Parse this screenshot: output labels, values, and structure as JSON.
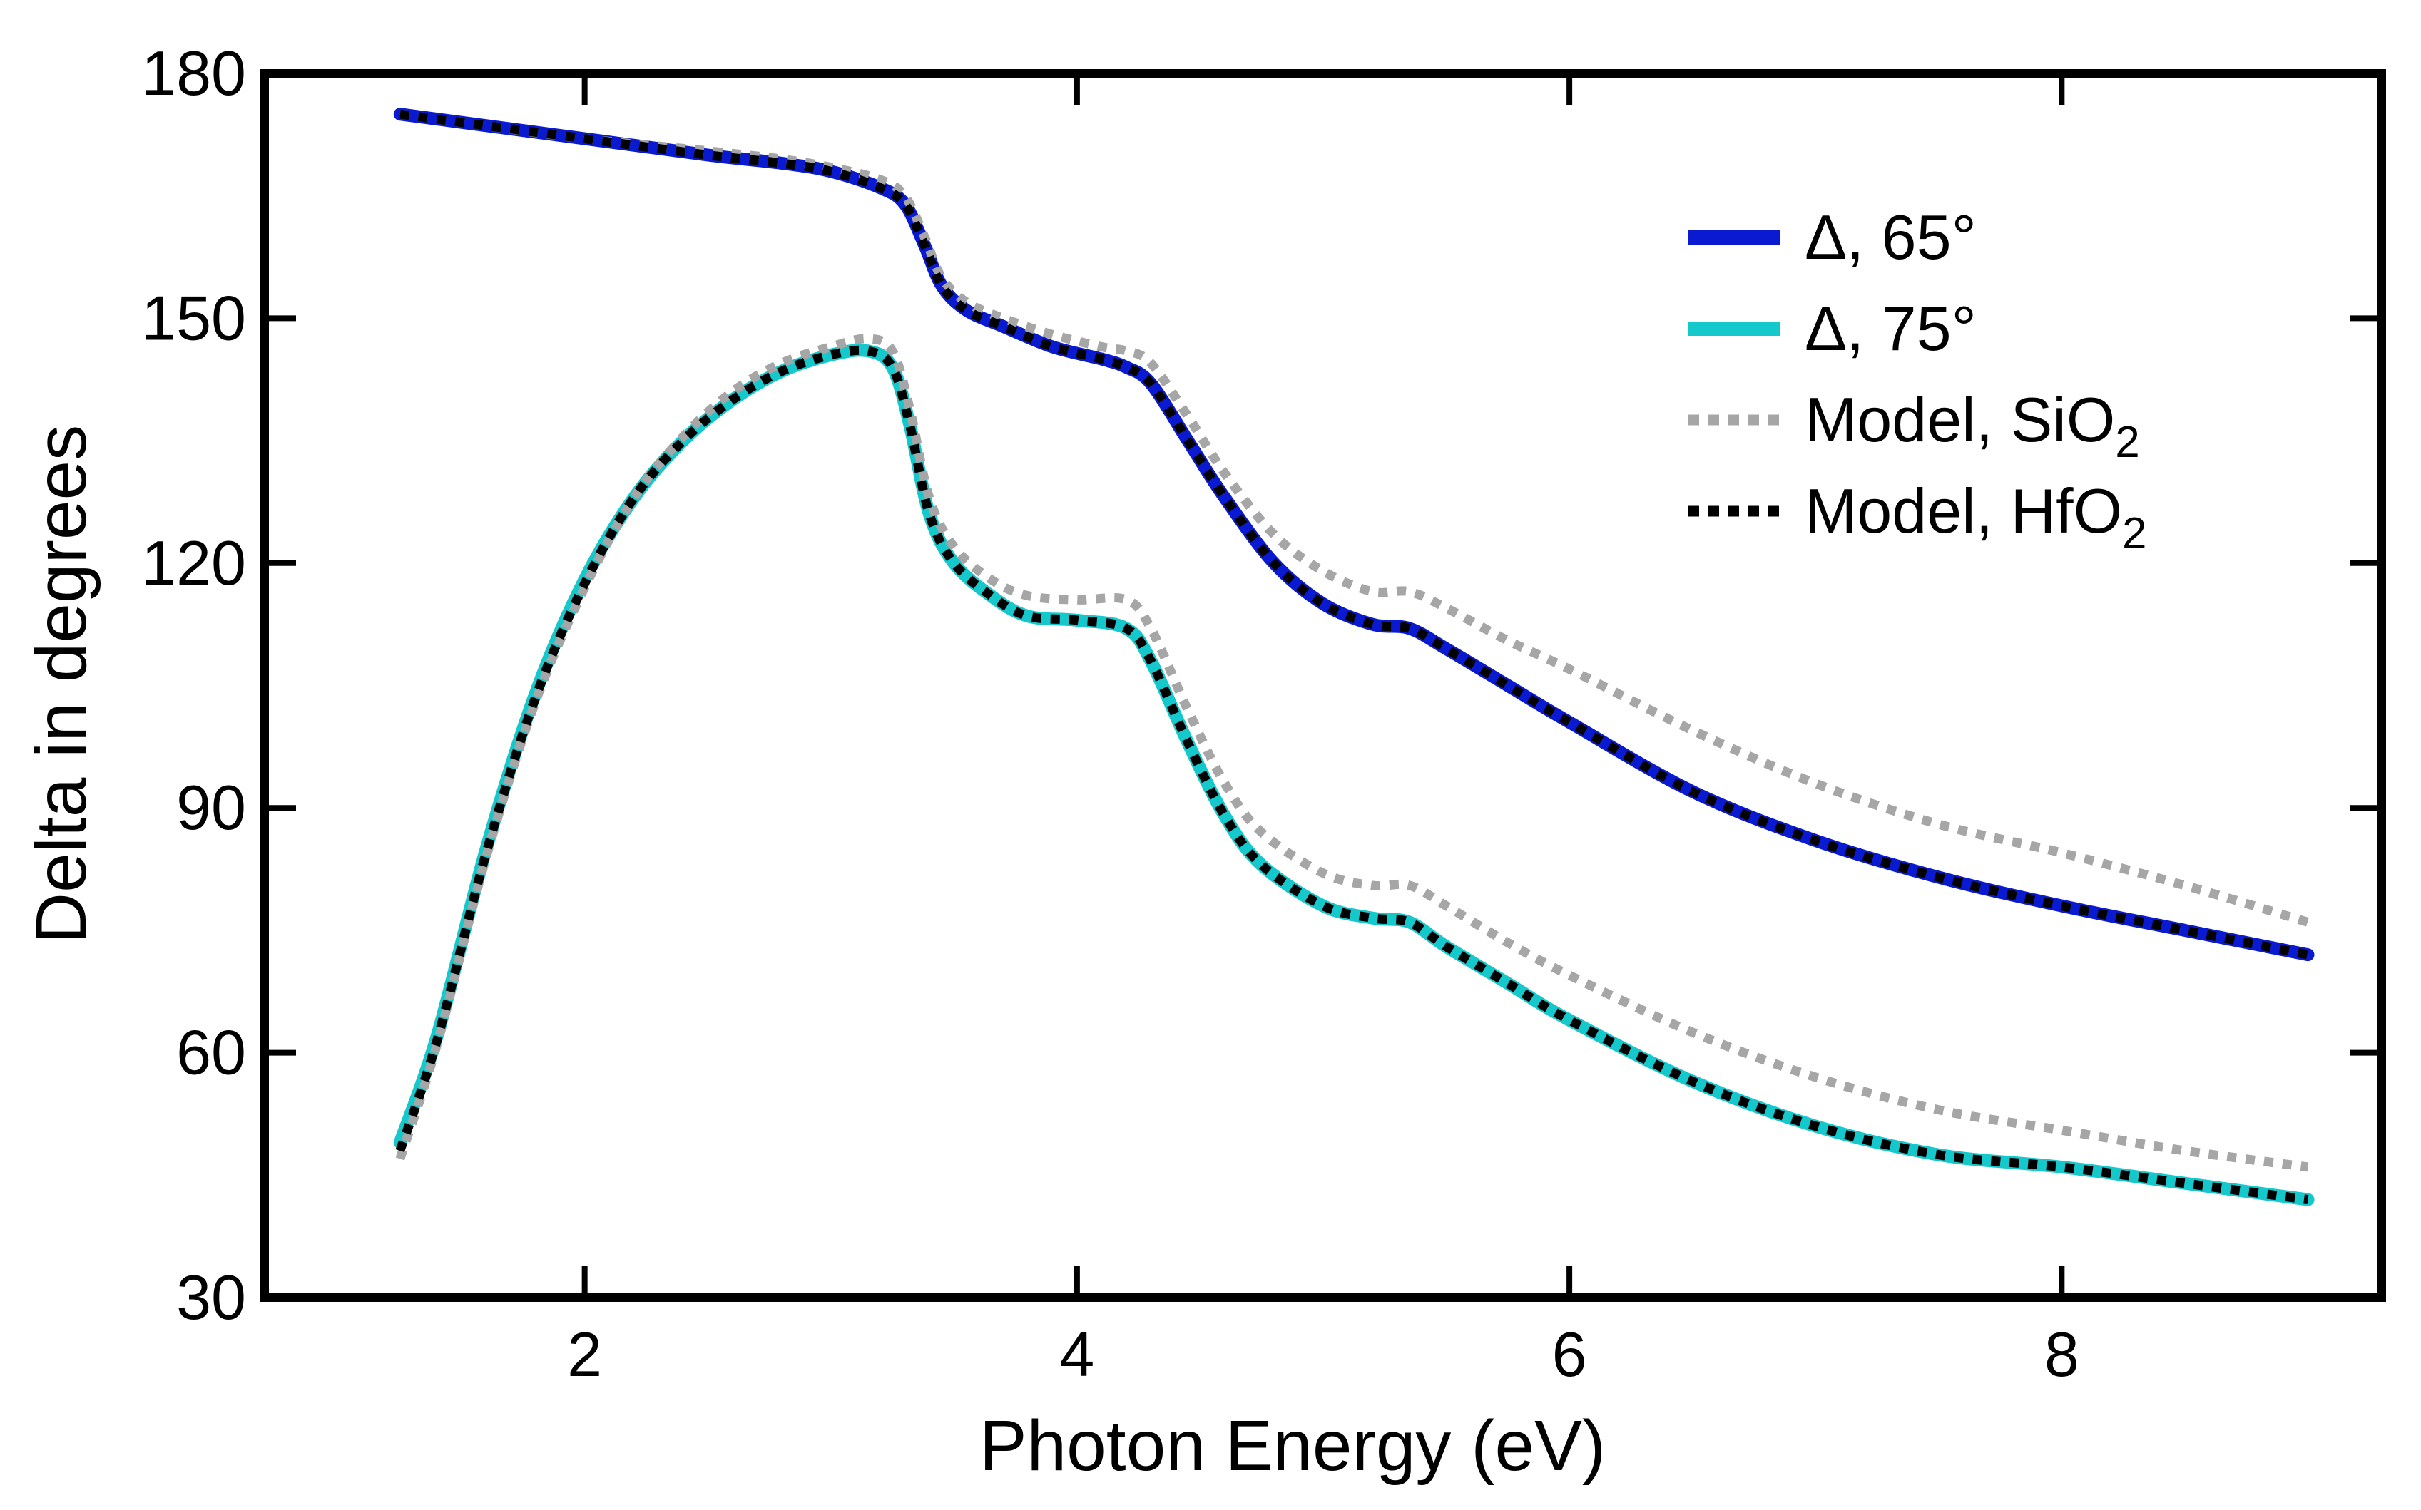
{
  "chart_data": {
    "type": "line",
    "xlabel": "Photon Energy (eV)",
    "ylabel": "Delta in degrees",
    "xlim": [
      0.7,
      9.3
    ],
    "ylim": [
      30,
      180
    ],
    "xticks": [
      2,
      4,
      6,
      8
    ],
    "yticks": [
      30,
      60,
      90,
      120,
      150,
      180
    ],
    "grid": false,
    "legend_position": "top-right",
    "legend": [
      {
        "text": "Δ, 65°",
        "sub": "",
        "color": "#0a1ad0",
        "style": "solid"
      },
      {
        "text": "Δ, 75°",
        "sub": "",
        "color": "#14c8cc",
        "style": "solid"
      },
      {
        "text": "Model, SiO",
        "sub": "2",
        "color": "#a6a6a6",
        "style": "dotted"
      },
      {
        "text": "Model, HfO",
        "sub": "2",
        "color": "#000000",
        "style": "dotted"
      }
    ],
    "series": [
      {
        "name": "Δ, 65°",
        "color": "#0a1ad0",
        "style": "solid",
        "x": [
          1.25,
          1.5,
          2.0,
          2.5,
          2.8,
          3.0,
          3.2,
          3.3,
          3.38,
          3.45,
          3.55,
          3.7,
          3.9,
          4.1,
          4.2,
          4.3,
          4.45,
          4.6,
          4.8,
          5.0,
          5.2,
          5.35,
          5.5,
          5.75,
          6.0,
          6.5,
          7.0,
          7.5,
          8.0,
          8.5,
          9.0
        ],
        "y": [
          175,
          174,
          172,
          170,
          169,
          168,
          166,
          164,
          159,
          154,
          151,
          149,
          146.5,
          145,
          144,
          142,
          135,
          128,
          120,
          115,
          112.5,
          112,
          109.5,
          105,
          100.5,
          92,
          86,
          81.5,
          78,
          75,
          72
        ]
      },
      {
        "name": "Δ, 75°",
        "color": "#14c8cc",
        "style": "solid",
        "x": [
          1.25,
          1.4,
          1.6,
          1.8,
          2.0,
          2.2,
          2.4,
          2.6,
          2.8,
          3.0,
          3.15,
          3.25,
          3.32,
          3.4,
          3.5,
          3.65,
          3.8,
          4.0,
          4.2,
          4.3,
          4.45,
          4.6,
          4.75,
          5.0,
          5.2,
          5.35,
          5.5,
          5.75,
          6.0,
          6.5,
          7.0,
          7.5,
          8.0,
          8.5,
          9.0
        ],
        "y": [
          49,
          62,
          85,
          104,
          118,
          128,
          135,
          140,
          143.5,
          145.5,
          146,
          144,
          137,
          126,
          120,
          116,
          113.5,
          113,
          112,
          108,
          98,
          89,
          83,
          78,
          76.5,
          76,
          73,
          68.5,
          64,
          56.5,
          51,
          47.5,
          46,
          44,
          42
        ]
      },
      {
        "name": "Model, SiO2",
        "color": "#a6a6a6",
        "style": "dotted",
        "curves": [
          {
            "x": [
              1.25,
              1.5,
              2.0,
              2.5,
              2.8,
              3.0,
              3.2,
              3.3,
              3.38,
              3.45,
              3.55,
              3.7,
              3.9,
              4.1,
              4.2,
              4.3,
              4.45,
              4.6,
              4.8,
              5.0,
              5.2,
              5.35,
              5.5,
              5.75,
              6.0,
              6.5,
              7.0,
              7.5,
              8.0,
              8.5,
              9.0
            ],
            "y": [
              175,
              174,
              172,
              170.5,
              169.5,
              168.5,
              167,
              165,
              160,
              155,
              152,
              150,
              148,
              146.5,
              146,
              144.5,
              138,
              131,
              123.5,
              119,
              116.5,
              116.5,
              114.5,
              110.5,
              107,
              99.5,
              93,
              88,
              84.5,
              80.5,
              76
            ]
          },
          {
            "x": [
              1.25,
              1.4,
              1.6,
              1.8,
              2.0,
              2.2,
              2.4,
              2.6,
              2.8,
              3.0,
              3.15,
              3.25,
              3.32,
              3.4,
              3.5,
              3.65,
              3.8,
              4.0,
              4.2,
              4.3,
              4.45,
              4.6,
              4.75,
              5.0,
              5.2,
              5.35,
              5.5,
              5.75,
              6.0,
              6.5,
              7.0,
              7.5,
              8.0,
              8.5,
              9.0
            ],
            "y": [
              47,
              61,
              84,
              103,
              117,
              128,
              135.5,
              141,
              144.5,
              146.5,
              147.5,
              146,
              139,
              128,
              122,
              118,
              116,
              115.5,
              115.5,
              112,
              102,
              93,
              87,
              82,
              80.5,
              80.5,
              78,
              73.5,
              69.5,
              62.5,
              57,
              53,
              50.5,
              48,
              46
            ]
          }
        ]
      },
      {
        "name": "Model, HfO2",
        "color": "#000000",
        "style": "dotted",
        "curves": [
          {
            "x": [
              1.25,
              1.5,
              2.0,
              2.5,
              2.8,
              3.0,
              3.2,
              3.3,
              3.38,
              3.45,
              3.55,
              3.7,
              3.9,
              4.1,
              4.2,
              4.3,
              4.45,
              4.6,
              4.8,
              5.0,
              5.2,
              5.35,
              5.5,
              5.75,
              6.0,
              6.5,
              7.0,
              7.5,
              8.0,
              8.5,
              9.0
            ],
            "y": [
              175,
              174,
              172,
              170,
              169,
              168,
              166,
              164,
              159,
              154,
              151,
              149,
              146.5,
              145,
              144,
              142,
              135,
              128,
              120,
              115,
              112.5,
              112,
              109.5,
              105,
              100.5,
              92,
              86,
              81.5,
              78,
              75,
              72
            ]
          },
          {
            "x": [
              1.25,
              1.4,
              1.6,
              1.8,
              2.0,
              2.2,
              2.4,
              2.6,
              2.8,
              3.0,
              3.15,
              3.25,
              3.32,
              3.4,
              3.5,
              3.65,
              3.8,
              4.0,
              4.2,
              4.3,
              4.45,
              4.6,
              4.75,
              5.0,
              5.2,
              5.35,
              5.5,
              5.75,
              6.0,
              6.5,
              7.0,
              7.5,
              8.0,
              8.5,
              9.0
            ],
            "y": [
              48,
              61.5,
              84.5,
              103.5,
              117.5,
              128,
              135,
              140,
              143.5,
              145.5,
              146,
              144,
              137,
              126,
              120,
              116,
              113.5,
              113,
              112,
              108,
              98,
              89,
              83,
              78,
              76.5,
              76,
              73,
              68.5,
              64,
              56.5,
              51,
              47.5,
              46,
              44,
              42
            ]
          }
        ]
      }
    ]
  }
}
